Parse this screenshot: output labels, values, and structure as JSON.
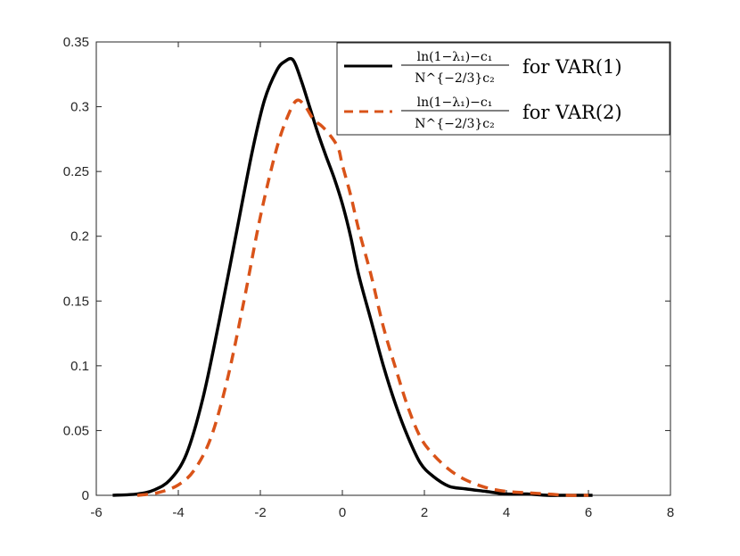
{
  "chart_data": {
    "type": "line",
    "title": "",
    "xlabel": "",
    "ylabel": "",
    "xlim": [
      -6,
      8
    ],
    "ylim": [
      0,
      0.35
    ],
    "xticks": [
      -6,
      -4,
      -2,
      0,
      2,
      4,
      6,
      8
    ],
    "yticks": [
      0,
      0.05,
      0.1,
      0.15,
      0.2,
      0.25,
      0.3,
      0.35
    ],
    "xtick_labels": [
      "-6",
      "-4",
      "-2",
      "0",
      "2",
      "4",
      "6",
      "8"
    ],
    "ytick_labels": [
      "0",
      "0.05",
      "0.1",
      "0.15",
      "0.2",
      "0.25",
      "0.3",
      "0.35"
    ],
    "grid": false,
    "legend_position": "top-right",
    "series": [
      {
        "legend_numerator": "ln(1−λ₁)−c₁",
        "legend_denominator": "N^{−2/3}c₂",
        "legend_suffix": "for VAR(1)",
        "color": "#000000",
        "style": "solid",
        "x": [
          -5.6,
          -5.0,
          -4.6,
          -4.2,
          -3.8,
          -3.4,
          -3.0,
          -2.6,
          -2.2,
          -1.9,
          -1.6,
          -1.4,
          -1.2,
          -1.0,
          -0.8,
          -0.6,
          -0.4,
          -0.2,
          0.0,
          0.2,
          0.4,
          0.7,
          1.0,
          1.3,
          1.6,
          1.9,
          2.2,
          2.6,
          3.0,
          3.5,
          4.0,
          4.5,
          5.0,
          5.5,
          6.1
        ],
        "y": [
          0.0,
          0.001,
          0.004,
          0.012,
          0.032,
          0.075,
          0.135,
          0.2,
          0.265,
          0.305,
          0.328,
          0.335,
          0.336,
          0.32,
          0.3,
          0.28,
          0.262,
          0.245,
          0.225,
          0.2,
          0.17,
          0.135,
          0.1,
          0.07,
          0.045,
          0.025,
          0.015,
          0.007,
          0.005,
          0.003,
          0.001,
          0.001,
          0.0,
          0.0,
          0.0
        ]
      },
      {
        "legend_numerator": "ln(1−λ₁)−c₁",
        "legend_denominator": "N^{−2/3}c₂",
        "legend_suffix": "for VAR(2)",
        "color": "#D95319",
        "style": "dashed",
        "x": [
          -5.0,
          -4.5,
          -4.0,
          -3.6,
          -3.2,
          -2.8,
          -2.4,
          -2.0,
          -1.6,
          -1.3,
          -1.1,
          -0.9,
          -0.7,
          -0.5,
          -0.3,
          -0.1,
          0.0,
          0.2,
          0.4,
          0.7,
          1.0,
          1.3,
          1.6,
          1.9,
          2.2,
          2.6,
          3.0,
          3.5,
          4.0,
          4.5,
          5.0,
          5.5,
          6.0
        ],
        "y": [
          0.0,
          0.002,
          0.008,
          0.02,
          0.045,
          0.09,
          0.15,
          0.215,
          0.268,
          0.295,
          0.305,
          0.3,
          0.29,
          0.285,
          0.278,
          0.268,
          0.255,
          0.232,
          0.205,
          0.17,
          0.13,
          0.098,
          0.068,
          0.045,
          0.032,
          0.02,
          0.012,
          0.006,
          0.003,
          0.002,
          0.001,
          0.0,
          0.0
        ]
      }
    ]
  }
}
